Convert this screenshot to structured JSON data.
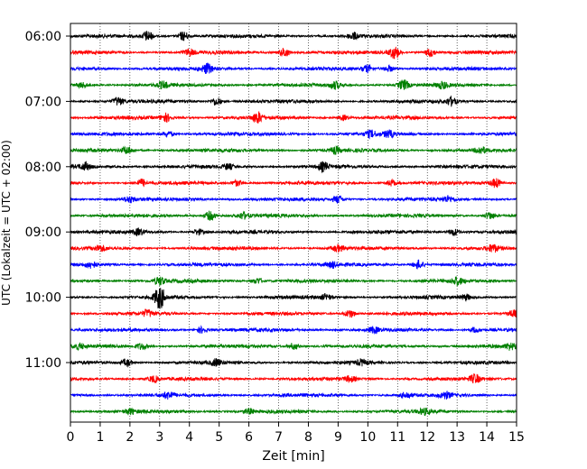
{
  "chart_data": {
    "type": "line",
    "title": "",
    "xlabel": "Zeit  [min]",
    "ylabel": "UTC (Lokalzeit = UTC + 02:00)",
    "xlim": [
      0,
      15
    ],
    "x_ticks": [
      "0",
      "1",
      "2",
      "3",
      "4",
      "5",
      "6",
      "7",
      "8",
      "9",
      "10",
      "11",
      "12",
      "13",
      "14",
      "15"
    ],
    "y_tick_labels": [
      "06:00",
      "07:00",
      "08:00",
      "09:00",
      "10:00",
      "11:00"
    ],
    "grid": "vertical dotted at each minute",
    "trace_interval_minutes": 15,
    "trace_colors_cycle": [
      "#000000",
      "#ff0000",
      "#0000ff",
      "#008000"
    ],
    "traces": [
      {
        "start": "06:00",
        "color": "#000000",
        "events": [
          [
            2.6,
            1.0
          ],
          [
            3.8,
            0.9
          ],
          [
            9.5,
            0.6
          ]
        ]
      },
      {
        "start": "06:15",
        "color": "#ff0000",
        "events": [
          [
            4.0,
            0.6
          ],
          [
            7.2,
            0.9
          ],
          [
            10.9,
            1.2
          ],
          [
            12.1,
            0.8
          ]
        ]
      },
      {
        "start": "06:30",
        "color": "#0000ff",
        "events": [
          [
            4.6,
            0.9
          ],
          [
            10.0,
            0.7
          ],
          [
            10.7,
            0.6
          ]
        ]
      },
      {
        "start": "06:45",
        "color": "#008000",
        "events": [
          [
            0.4,
            0.5
          ],
          [
            3.1,
            0.6
          ],
          [
            8.9,
            0.7
          ],
          [
            11.2,
            1.0
          ],
          [
            12.5,
            0.6
          ]
        ]
      },
      {
        "start": "07:00",
        "color": "#000000",
        "events": [
          [
            1.6,
            0.8
          ],
          [
            4.9,
            0.8
          ],
          [
            12.8,
            0.8
          ]
        ]
      },
      {
        "start": "07:15",
        "color": "#ff0000",
        "events": [
          [
            3.2,
            0.8
          ],
          [
            6.3,
            1.0
          ],
          [
            9.2,
            0.5
          ]
        ]
      },
      {
        "start": "07:30",
        "color": "#0000ff",
        "events": [
          [
            3.3,
            0.6
          ],
          [
            10.1,
            0.6
          ],
          [
            10.7,
            0.6
          ]
        ]
      },
      {
        "start": "07:45",
        "color": "#008000",
        "events": [
          [
            1.9,
            0.7
          ],
          [
            8.9,
            0.6
          ],
          [
            13.8,
            0.6
          ]
        ]
      },
      {
        "start": "08:00",
        "color": "#000000",
        "events": [
          [
            0.5,
            0.7
          ],
          [
            5.3,
            0.5
          ],
          [
            8.5,
            0.8
          ]
        ]
      },
      {
        "start": "08:15",
        "color": "#ff0000",
        "events": [
          [
            2.4,
            0.7
          ],
          [
            5.6,
            0.6
          ],
          [
            10.8,
            0.6
          ],
          [
            14.3,
            0.9
          ]
        ]
      },
      {
        "start": "08:30",
        "color": "#0000ff",
        "events": [
          [
            2.0,
            0.6
          ],
          [
            9.0,
            0.7
          ],
          [
            12.7,
            0.5
          ]
        ]
      },
      {
        "start": "08:45",
        "color": "#008000",
        "events": [
          [
            4.7,
            0.9
          ],
          [
            5.8,
            0.6
          ],
          [
            14.1,
            0.7
          ]
        ]
      },
      {
        "start": "09:00",
        "color": "#000000",
        "events": [
          [
            2.3,
            0.6
          ],
          [
            4.3,
            0.6
          ],
          [
            12.9,
            0.7
          ]
        ]
      },
      {
        "start": "09:15",
        "color": "#ff0000",
        "events": [
          [
            1.0,
            0.5
          ],
          [
            9.0,
            0.6
          ],
          [
            14.2,
            0.7
          ]
        ]
      },
      {
        "start": "09:30",
        "color": "#0000ff",
        "events": [
          [
            0.7,
            0.6
          ],
          [
            8.8,
            0.5
          ],
          [
            11.7,
            0.9
          ]
        ]
      },
      {
        "start": "09:45",
        "color": "#008000",
        "events": [
          [
            3.0,
            0.8
          ],
          [
            6.3,
            0.6
          ],
          [
            13.0,
            0.7
          ]
        ]
      },
      {
        "start": "10:00",
        "color": "#000000",
        "events": [
          [
            3.0,
            2.2
          ],
          [
            8.6,
            0.5
          ],
          [
            13.3,
            0.5
          ]
        ]
      },
      {
        "start": "10:15",
        "color": "#ff0000",
        "events": [
          [
            2.6,
            0.6
          ],
          [
            9.4,
            0.8
          ],
          [
            14.9,
            0.6
          ]
        ]
      },
      {
        "start": "10:30",
        "color": "#0000ff",
        "events": [
          [
            4.4,
            0.6
          ],
          [
            10.2,
            0.5
          ],
          [
            13.6,
            0.5
          ]
        ]
      },
      {
        "start": "10:45",
        "color": "#008000",
        "events": [
          [
            0.3,
            0.5
          ],
          [
            2.4,
            0.6
          ],
          [
            7.5,
            0.6
          ],
          [
            14.8,
            0.6
          ]
        ]
      },
      {
        "start": "11:00",
        "color": "#000000",
        "events": [
          [
            1.9,
            0.7
          ],
          [
            4.9,
            0.6
          ],
          [
            9.8,
            0.5
          ]
        ]
      },
      {
        "start": "11:15",
        "color": "#ff0000",
        "events": [
          [
            2.8,
            0.6
          ],
          [
            9.4,
            0.5
          ],
          [
            13.6,
            0.8
          ]
        ]
      },
      {
        "start": "11:30",
        "color": "#0000ff",
        "events": [
          [
            3.3,
            0.6
          ],
          [
            11.3,
            0.6
          ],
          [
            12.6,
            0.6
          ]
        ]
      },
      {
        "start": "11:45",
        "color": "#008000",
        "events": [
          [
            2.0,
            0.5
          ],
          [
            6.0,
            0.5
          ],
          [
            11.9,
            0.5
          ]
        ]
      }
    ]
  }
}
